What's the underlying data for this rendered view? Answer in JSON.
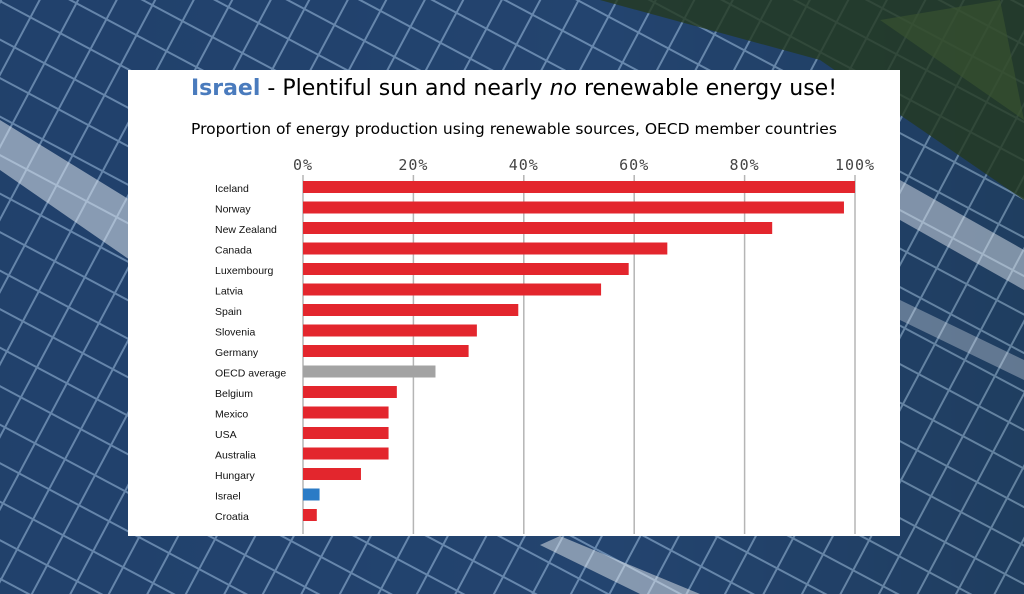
{
  "header": {
    "title_highlight": "Israel",
    "title_part1": " - Plentiful sun and nearly ",
    "title_emphasis": "no",
    "title_part2": " renewable energy use!",
    "subtitle": "Proportion of energy production using renewable sources, OECD member countries"
  },
  "colors": {
    "title_highlight": "#4a7bbd",
    "bar_default": "#e3262d",
    "bar_average": "#a3a3a3",
    "bar_highlight": "#2b7bc6"
  },
  "chart_data": {
    "type": "bar",
    "orientation": "horizontal",
    "xlim": [
      0,
      100
    ],
    "x_ticks": [
      "0%",
      "20%",
      "40%",
      "60%",
      "80%",
      "100%"
    ],
    "grid": true,
    "categories": [
      "Iceland",
      "Norway",
      "New Zealand",
      "Canada",
      "Luxembourg",
      "Latvia",
      "Spain",
      "Slovenia",
      "Germany",
      "OECD average",
      "Belgium",
      "Mexico",
      "USA",
      "Australia",
      "Hungary",
      "Israel",
      "Croatia"
    ],
    "values": [
      100,
      98,
      85,
      66,
      59,
      54,
      39,
      31.5,
      30,
      24,
      17,
      15.5,
      15.5,
      15.5,
      10.5,
      3,
      2.5
    ],
    "bar_colors": [
      "red",
      "red",
      "red",
      "red",
      "red",
      "red",
      "red",
      "red",
      "red",
      "gray",
      "red",
      "red",
      "red",
      "red",
      "red",
      "blue",
      "red"
    ]
  }
}
